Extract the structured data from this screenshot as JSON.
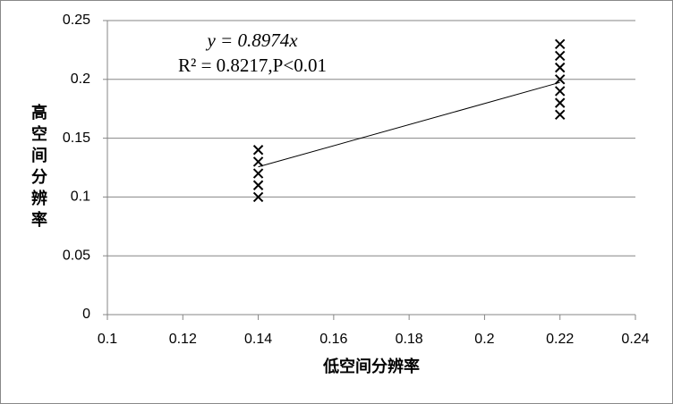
{
  "chart_data": {
    "type": "scatter",
    "x_label": "低空间分辨率",
    "y_label": "高空间分辨率",
    "series": [
      {
        "x": [
          0.14,
          0.14,
          0.14,
          0.14,
          0.14,
          0.22,
          0.22,
          0.22,
          0.22,
          0.22,
          0.22,
          0.22
        ],
        "values": [
          0.14,
          0.13,
          0.12,
          0.11,
          0.1,
          0.23,
          0.22,
          0.21,
          0.2,
          0.19,
          0.18,
          0.17
        ],
        "color": "#000000"
      }
    ],
    "trendline": {
      "slope": 0.8974,
      "label": "y = 0.8974x",
      "stats": "R² = 0.8217,P<0.01"
    },
    "xlim": [
      0.1,
      0.24
    ],
    "xticks": [
      0.1,
      0.12,
      0.14,
      0.16,
      0.18,
      0.2,
      0.22,
      0.24
    ],
    "ylim": [
      0,
      0.25
    ],
    "yticks": [
      0,
      0.05,
      0.1,
      0.15,
      0.2,
      0.25
    ],
    "grid": true
  }
}
